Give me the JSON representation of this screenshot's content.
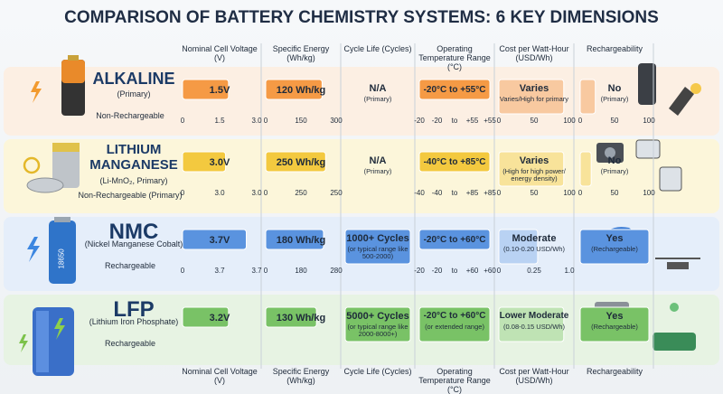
{
  "title": "COMPARISON OF BATTERY CHEMISTRY SYSTEMS: 6 KEY DIMENSIONS",
  "column_headers": [
    "Nominal Cell Voltage (V)",
    "Specific Energy (Wh/kg)",
    "Cycle Life (Cycles)",
    "Operating Temperature Range (°C)",
    "Cost per Watt-Hour (USD/Wh)",
    "Rechargeability"
  ],
  "footer_headers": [
    "Nominal Cell Voltage (V)",
    "Specific Energy (Wh/kg)",
    "Cycle Life (Cycles)",
    "Operating Temperature Range (°C)",
    "Cost per Watt-Hour (USD/Wh)",
    "Rechargeability"
  ],
  "rows": [
    {
      "name": "ALKALINE",
      "subtitle": "(Primary)",
      "status": "Non-Rechargeable",
      "cells": [
        {
          "text": "1.5V",
          "ticks": [
            "0",
            "1.5",
            "3.0"
          ]
        },
        {
          "text": "120 Wh/kg",
          "ticks": [
            "0",
            "150",
            "300"
          ]
        },
        {
          "text": "N/A",
          "note": "(Primary)"
        },
        {
          "text": "-20°C to +55°C",
          "ticks": [
            "-20",
            "-20",
            "to",
            "+55",
            "+55"
          ]
        },
        {
          "text": "Varies",
          "note": "Varies/High for primary",
          "ticks": [
            "0",
            "50",
            "100"
          ]
        },
        {
          "text": "No",
          "note": "(Primary)",
          "ticks": [
            "0",
            "50",
            "100"
          ]
        }
      ]
    },
    {
      "name": "LITHIUM MANGANESE",
      "subtitle": "(Li-MnO₂, Primary)",
      "status": "Non-Rechargeable (Primary)",
      "cells": [
        {
          "text": "3.0V",
          "ticks": [
            "0",
            "3.0",
            "3.0"
          ]
        },
        {
          "text": "250 Wh/kg",
          "ticks": [
            "0",
            "250",
            "250"
          ]
        },
        {
          "text": "N/A",
          "note": "(Primary)"
        },
        {
          "text": "-40°C to +85°C",
          "ticks": [
            "-40",
            "-40",
            "to",
            "+85",
            "+85"
          ]
        },
        {
          "text": "Varies",
          "note": "(High for high power/ energy density)",
          "ticks": [
            "0",
            "50",
            "100"
          ]
        },
        {
          "text": "No",
          "note": "(Primary)",
          "ticks": [
            "0",
            "50",
            "100"
          ]
        }
      ]
    },
    {
      "name": "NMC",
      "subtitle": "(Nickel Manganese Cobalt)",
      "status": "Rechargeable",
      "battery_label": "18650",
      "cells": [
        {
          "text": "3.7V",
          "ticks": [
            "0",
            "3.7",
            "3.7"
          ]
        },
        {
          "text": "180 Wh/kg",
          "ticks": [
            "0",
            "180",
            "280"
          ]
        },
        {
          "text": "1000+ Cycles",
          "note": "(or typical range like 500-2000)"
        },
        {
          "text": "-20°C to +60°C",
          "ticks": [
            "-20",
            "-20",
            "to",
            "+60",
            "+60"
          ]
        },
        {
          "text": "Moderate",
          "note": "(0.10-0.20 USD/Wh)",
          "ticks": [
            "0",
            "0.25",
            "1.0"
          ]
        },
        {
          "text": "Yes",
          "note": "(Rechargeable)"
        }
      ]
    },
    {
      "name": "LFP",
      "subtitle": "(Lithium Iron Phosphate)",
      "status": "Rechargeable",
      "cells": [
        {
          "text": "3.2V"
        },
        {
          "text": "130 Wh/kg"
        },
        {
          "text": "5000+ Cycles",
          "note": "(or typical range like 2000-8000+)"
        },
        {
          "text": "-20°C to +60°C",
          "note": "(or extended range)"
        },
        {
          "text": "Lower Moderate",
          "note": "(0.08-0.15 USD/Wh)"
        },
        {
          "text": "Yes",
          "note": "(Rechargeable)"
        }
      ]
    }
  ]
}
